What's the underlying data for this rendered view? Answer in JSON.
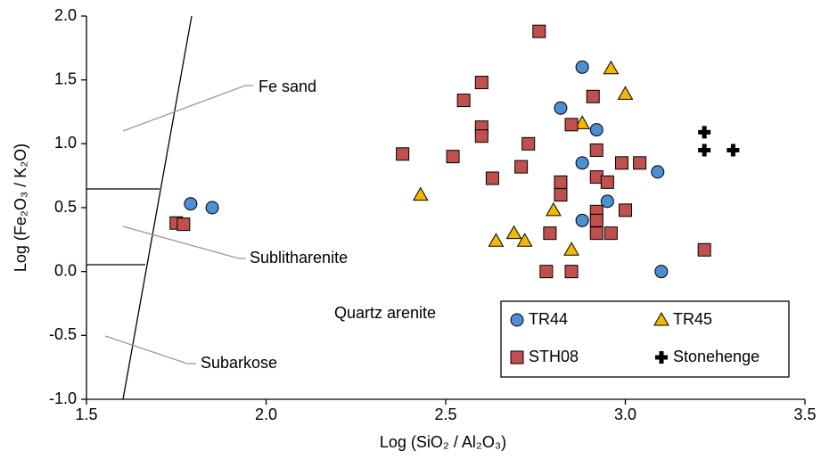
{
  "chart_data": {
    "type": "scatter",
    "xlabel": "Log (SiO₂ / Al₂O₃)",
    "ylabel": "Log (Fe₂O₃ / K₂O)",
    "annotations": [
      "Fe sand",
      "Sublitharenite",
      "Subarkose",
      "Quartz arenite"
    ],
    "xlim": [
      1.5,
      3.5
    ],
    "ylim": [
      -1,
      2
    ],
    "xticks": [
      1.5,
      {
        "value": 2,
        "label": "2.0"
      },
      2.5,
      {
        "value": 3,
        "label": "3.0"
      },
      3.5
    ],
    "yticks": [
      {
        "value": -1,
        "label": "-1.0"
      },
      -0.5,
      {
        "value": 0,
        "label": "0.0"
      },
      0.5,
      {
        "value": 1,
        "label": "1.0"
      },
      1.5,
      {
        "value": 2,
        "label": "2.0"
      }
    ],
    "series": [
      {
        "name": "TR44",
        "color": "#4a90d2",
        "marker": "circle",
        "x": [
          1.79,
          1.85,
          2.88,
          2.82,
          2.92,
          2.88,
          3.09,
          2.95,
          2.88,
          3.1
        ],
        "values": [
          0.53,
          0.5,
          1.6,
          1.28,
          1.11,
          0.85,
          0.78,
          0.55,
          0.4,
          0.0
        ]
      },
      {
        "name": "TR45",
        "color": "#f5b800",
        "marker": "triangle",
        "x": [
          2.96,
          3.0,
          2.88,
          2.43,
          2.8,
          2.64,
          2.69,
          2.72,
          2.85
        ],
        "values": [
          1.59,
          1.39,
          1.16,
          0.6,
          0.48,
          0.24,
          0.3,
          0.24,
          0.17
        ]
      },
      {
        "name": "STH08",
        "color": "#c0504d",
        "marker": "square",
        "x": [
          2.76,
          2.6,
          2.55,
          2.91,
          2.6,
          2.6,
          2.85,
          2.73,
          2.38,
          2.52,
          2.92,
          2.71,
          2.99,
          3.04,
          2.63,
          2.82,
          2.92,
          2.95,
          2.82,
          2.92,
          3.0,
          2.92,
          2.79,
          2.92,
          2.96,
          1.75,
          1.77,
          2.78,
          2.85,
          3.22
        ],
        "values": [
          1.88,
          1.48,
          1.34,
          1.37,
          1.13,
          1.06,
          1.15,
          1.0,
          0.92,
          0.9,
          0.95,
          0.82,
          0.85,
          0.85,
          0.73,
          0.7,
          0.74,
          0.7,
          0.6,
          0.47,
          0.48,
          0.4,
          0.3,
          0.3,
          0.3,
          0.38,
          0.37,
          0.0,
          0.0,
          0.17
        ]
      },
      {
        "name": "Stonehenge",
        "color": "#000000",
        "marker": "plus",
        "x": [
          3.22,
          3.22,
          3.3
        ],
        "values": [
          1.09,
          0.95,
          0.95
        ]
      }
    ]
  }
}
